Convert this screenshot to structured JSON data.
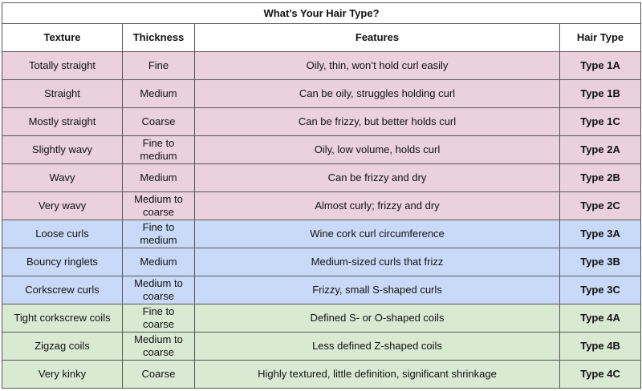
{
  "title": "What’s Your Hair Type?",
  "headers": {
    "texture": "Texture",
    "thickness": "Thickness",
    "features": "Features",
    "hair_type": "Hair Type"
  },
  "colors": {
    "type1": "#ead1dc",
    "type2": "#ead1dc",
    "type3": "#c9daf8",
    "type4": "#d9ead3"
  },
  "rows": [
    {
      "texture": "Totally straight",
      "thickness": "Fine",
      "features": "Oily, thin, won’t hold curl easily",
      "type": "Type 1A",
      "group": "type1"
    },
    {
      "texture": "Straight",
      "thickness": "Medium",
      "features": "Can be oily, struggles holding curl",
      "type": "Type 1B",
      "group": "type1"
    },
    {
      "texture": "Mostly straight",
      "thickness": "Coarse",
      "features": "Can be frizzy, but better holds curl",
      "type": "Type 1C",
      "group": "type1"
    },
    {
      "texture": "Slightly wavy",
      "thickness": "Fine to medium",
      "features": "Oily, low volume, holds curl",
      "type": "Type 2A",
      "group": "type2"
    },
    {
      "texture": "Wavy",
      "thickness": "Medium",
      "features": "Can be frizzy and dry",
      "type": "Type 2B",
      "group": "type2"
    },
    {
      "texture": "Very wavy",
      "thickness": "Medium to coarse",
      "features": "Almost curly; frizzy and dry",
      "type": "Type 2C",
      "group": "type2"
    },
    {
      "texture": "Loose curls",
      "thickness": "Fine to medium",
      "features": "Wine cork curl circumference",
      "type": "Type 3A",
      "group": "type3"
    },
    {
      "texture": "Bouncy ringlets",
      "thickness": "Medium",
      "features": "Medium-sized curls that frizz",
      "type": "Type 3B",
      "group": "type3"
    },
    {
      "texture": "Corkscrew curls",
      "thickness": "Medium to coarse",
      "features": "Frizzy, small S-shaped curls",
      "type": "Type 3C",
      "group": "type3"
    },
    {
      "texture": "Tight corkscrew coils",
      "thickness": "Fine to coarse",
      "features": "Defined S- or O-shaped coils",
      "type": "Type 4A",
      "group": "type4"
    },
    {
      "texture": "Zigzag coils",
      "thickness": "Medium to coarse",
      "features": "Less defined Z-shaped coils",
      "type": "Type 4B",
      "group": "type4"
    },
    {
      "texture": "Very kinky",
      "thickness": "Coarse",
      "features": "Highly textured, little definition, significant shrinkage",
      "type": "Type 4C",
      "group": "type4"
    }
  ]
}
